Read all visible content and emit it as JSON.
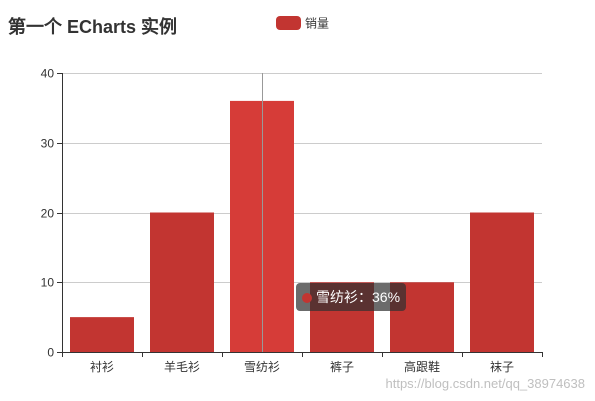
{
  "chart_data": {
    "type": "bar",
    "title": "第一个 ECharts 实例",
    "legend": [
      "销量"
    ],
    "legend_position": "top-center",
    "categories": [
      "衬衫",
      "羊毛衫",
      "雪纺衫",
      "裤子",
      "高跟鞋",
      "袜子"
    ],
    "series": [
      {
        "name": "销量",
        "values": [
          5,
          20,
          36,
          10,
          10,
          20
        ]
      }
    ],
    "ylim": [
      0,
      40
    ],
    "yticks": [
      0,
      10,
      20,
      30,
      40
    ],
    "grid": true,
    "bar_color": "#c23531",
    "highlight_color": "#d63c38"
  },
  "tooltip": {
    "text": "雪纺衫：36%",
    "category": "雪纺衫",
    "dot_color": "#c23531"
  },
  "watermark": "https://blog.csdn.net/qq_38974638"
}
